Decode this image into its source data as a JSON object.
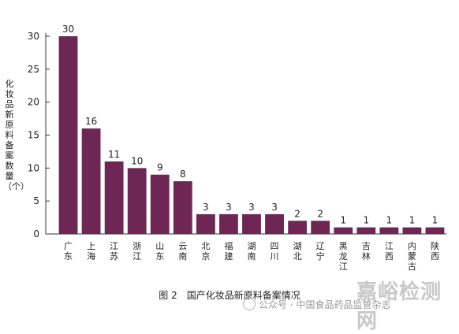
{
  "chart_data": {
    "type": "bar",
    "categories": [
      "广东",
      "上海",
      "江苏",
      "浙江",
      "山东",
      "云南",
      "北京",
      "福建",
      "湖南",
      "四川",
      "湖北",
      "辽宁",
      "黑龙江",
      "吉林",
      "江西",
      "内蒙古",
      "陕西"
    ],
    "values": [
      30,
      16,
      11,
      10,
      9,
      8,
      3,
      3,
      3,
      3,
      2,
      2,
      1,
      1,
      1,
      1,
      1
    ],
    "ylabel": "化妆品新原料备案数量（个）",
    "xlabel": "",
    "ylim": [
      0,
      30
    ],
    "yticks": [
      0,
      5,
      10,
      15,
      20,
      25,
      30
    ],
    "grid": false,
    "bar_color": "#6e2755",
    "caption": "图 2　国产化妆品新原料备案情况"
  },
  "watermark": {
    "text": "公众号 · 中国食品药品监管杂志",
    "brand": "嘉峪检测网",
    "icon": "wechat-icon"
  }
}
